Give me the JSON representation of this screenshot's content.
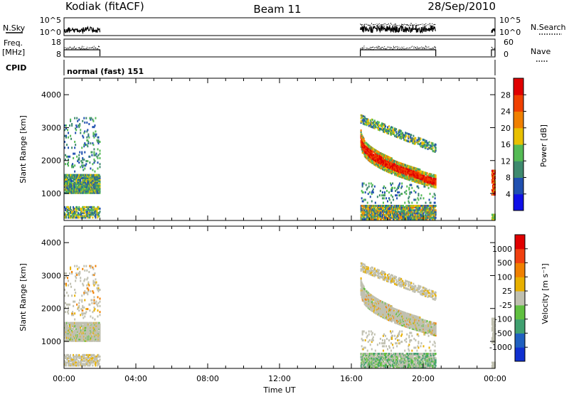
{
  "header": {
    "station": "Kodiak (fitACF)",
    "beam": "Beam 11",
    "date": "28/Sep/2010"
  },
  "strips": {
    "nsky_label": "N.Sky",
    "nsearch_label": "N.Search",
    "nsky_ticks": [
      "10^5",
      "10^0"
    ],
    "nsearch_ticks": [
      "10^5",
      "10^0"
    ],
    "freq_label_line1": "Freq.",
    "freq_label_line2": "[MHz]",
    "freq_ticks": [
      "18",
      "8"
    ],
    "nave_label": "Nave",
    "nave_ticks": [
      "60",
      "0"
    ],
    "cpid_label": "CPID",
    "cpid_value": "normal (fast) 151"
  },
  "chart_data": [
    {
      "type": "heatmap",
      "name": "power-panel",
      "ylabel": "Slant Range [km]",
      "xlabel": "",
      "x_ticks": [
        "00:00",
        "04:00",
        "08:00",
        "12:00",
        "16:00",
        "20:00",
        "00:00"
      ],
      "x_range_hours": [
        0,
        24
      ],
      "ylim": [
        180,
        4500
      ],
      "y_ticks": [
        1000,
        2000,
        3000,
        4000
      ],
      "colorbar": {
        "label": "Power [dB]",
        "ticks": [
          "4",
          "8",
          "12",
          "16",
          "20",
          "24",
          "28"
        ],
        "colors": [
          "#1010e8",
          "#2050b0",
          "#3e8a6e",
          "#55bb55",
          "#e8c000",
          "#f08000",
          "#f04000",
          "#e00000"
        ]
      },
      "data_intervals_hours": [
        [
          0.0,
          2.0
        ],
        [
          16.5,
          20.7
        ],
        [
          23.8,
          24.0
        ]
      ]
    },
    {
      "type": "heatmap",
      "name": "velocity-panel",
      "ylabel": "Slant Range [km]",
      "xlabel": "Time UT",
      "x_ticks": [
        "00:00",
        "04:00",
        "08:00",
        "12:00",
        "16:00",
        "20:00",
        "00:00"
      ],
      "x_range_hours": [
        0,
        24
      ],
      "ylim": [
        180,
        4500
      ],
      "y_ticks": [
        1000,
        2000,
        3000,
        4000
      ],
      "colorbar": {
        "label": "Velocity [m s⁻¹]",
        "ticks": [
          "1000",
          "500",
          "100",
          "25",
          "-25",
          "-100",
          "-500",
          "-1000"
        ],
        "colors": [
          "#1030d0",
          "#2060c0",
          "#40a070",
          "#60c040",
          "#c0c0b0",
          "#e8b000",
          "#f08000",
          "#f04010",
          "#e00000"
        ]
      },
      "data_intervals_hours": [
        [
          0.0,
          2.0
        ],
        [
          16.5,
          20.7
        ],
        [
          23.8,
          24.0
        ]
      ]
    }
  ]
}
